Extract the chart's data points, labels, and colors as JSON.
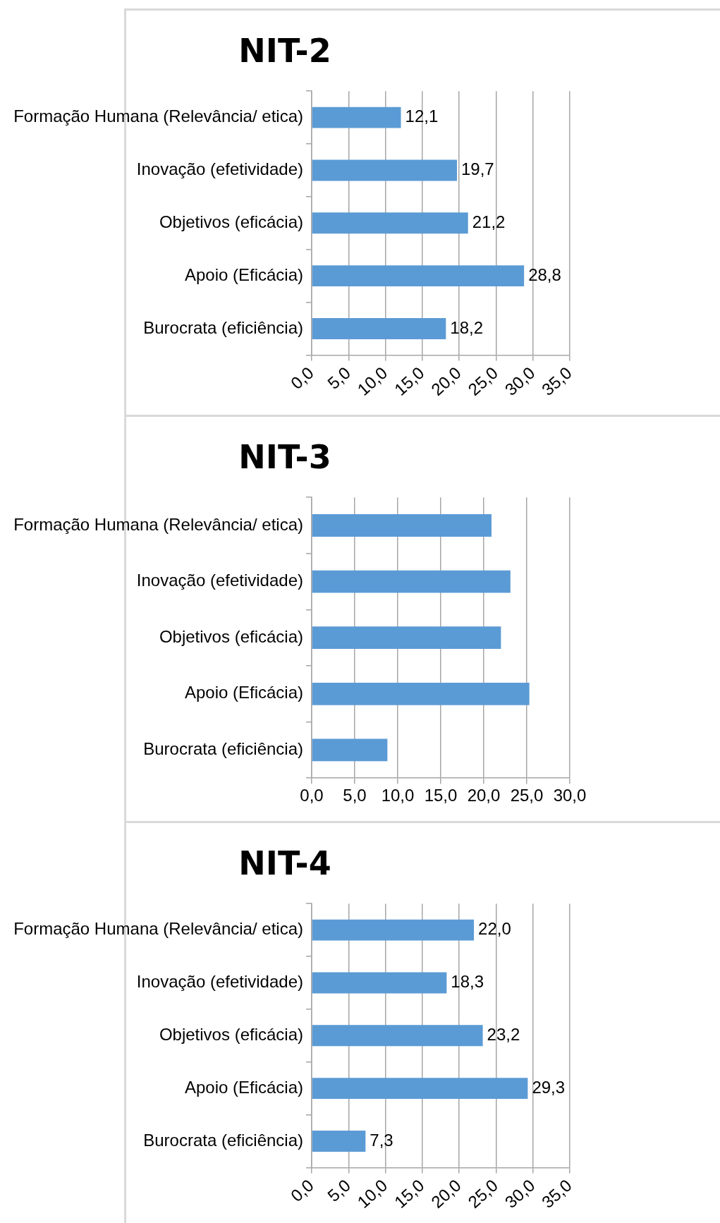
{
  "chart_data": [
    {
      "type": "bar",
      "orientation": "horizontal",
      "title": "NIT-2",
      "categories": [
        "Formação Humana (Relevância/ etica)",
        "Inovação (efetividade)",
        "Objetivos (eficácia)",
        "Apoio (Eficácia)",
        "Burocrata (eficiência)"
      ],
      "values": [
        12.1,
        19.7,
        21.2,
        28.8,
        18.2
      ],
      "value_labels": [
        "12,1",
        "19,7",
        "21,2",
        "28,8",
        "18,2"
      ],
      "color": "#5b9bd5",
      "xlim": [
        0,
        35
      ],
      "xticks": [
        {
          "value": 0,
          "label": "0,0"
        },
        {
          "value": 5,
          "label": "5,0"
        },
        {
          "value": 10,
          "label": "10,0"
        },
        {
          "value": 15,
          "label": "15,0"
        },
        {
          "value": 20,
          "label": "20,0"
        },
        {
          "value": 25,
          "label": "25,0"
        },
        {
          "value": 30,
          "label": "30,0"
        },
        {
          "value": 35,
          "label": "35,0"
        }
      ],
      "grid": "x"
    },
    {
      "type": "bar",
      "orientation": "horizontal",
      "title": "NIT-3",
      "categories": [
        "Formação Humana (Relevância/ etica)",
        "Inovação (efetividade)",
        "Objetivos (eficácia)",
        "Apoio (Eficácia)",
        "Burocrata (eficiência)"
      ],
      "values": [
        20.9,
        23.1,
        22.0,
        25.3,
        8.8
      ],
      "color": "#5b9bd5",
      "xlim": [
        0,
        30
      ],
      "xticks": [
        {
          "value": 0,
          "label": "0,0"
        },
        {
          "value": 5,
          "label": "5,0"
        },
        {
          "value": 10,
          "label": "10,0"
        },
        {
          "value": 15,
          "label": "15,0"
        },
        {
          "value": 20,
          "label": "20,0"
        },
        {
          "value": 25,
          "label": "25,0"
        },
        {
          "value": 30,
          "label": "30,0"
        }
      ],
      "grid": "x"
    },
    {
      "type": "bar",
      "orientation": "horizontal",
      "title": "NIT-4",
      "categories": [
        "Formação Humana (Relevância/ etica)",
        "Inovação (efetividade)",
        "Objetivos (eficácia)",
        "Apoio (Eficácia)",
        "Burocrata (eficiência)"
      ],
      "values": [
        22.0,
        18.3,
        23.2,
        29.3,
        7.3
      ],
      "value_labels": [
        "22,0",
        "18,3",
        "23,2",
        "29,3",
        "7,3"
      ],
      "color": "#5b9bd5",
      "xlim": [
        0,
        35
      ],
      "xticks": [
        {
          "value": 0,
          "label": "0,0"
        },
        {
          "value": 5,
          "label": "5,0"
        },
        {
          "value": 10,
          "label": "10,0"
        },
        {
          "value": 15,
          "label": "15,0"
        },
        {
          "value": 20,
          "label": "20,0"
        },
        {
          "value": 25,
          "label": "25,0"
        },
        {
          "value": 30,
          "label": "30,0"
        },
        {
          "value": 35,
          "label": "35,0"
        }
      ],
      "grid": "x"
    }
  ]
}
